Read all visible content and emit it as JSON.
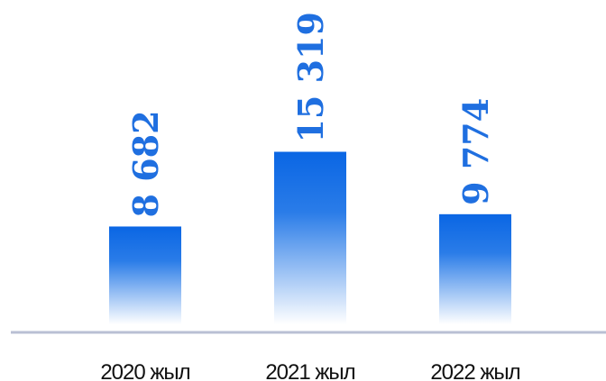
{
  "chart_data": {
    "type": "bar",
    "title": "",
    "xlabel": "",
    "ylabel": "",
    "categories": [
      "2020 жыл",
      "2021 жыл",
      "2022 жыл"
    ],
    "values": [
      8682,
      15319,
      9774
    ],
    "value_labels": [
      "8 682",
      "15 319",
      "9 774"
    ],
    "ylim": [
      0,
      24000
    ],
    "grid": false,
    "legend": "none",
    "colors": {
      "bar_top": "#0a66e4",
      "bar_bottom": "#ffffff",
      "label": "#1f6fe0",
      "axis": "#b9c0d4",
      "text": "#111111"
    }
  }
}
